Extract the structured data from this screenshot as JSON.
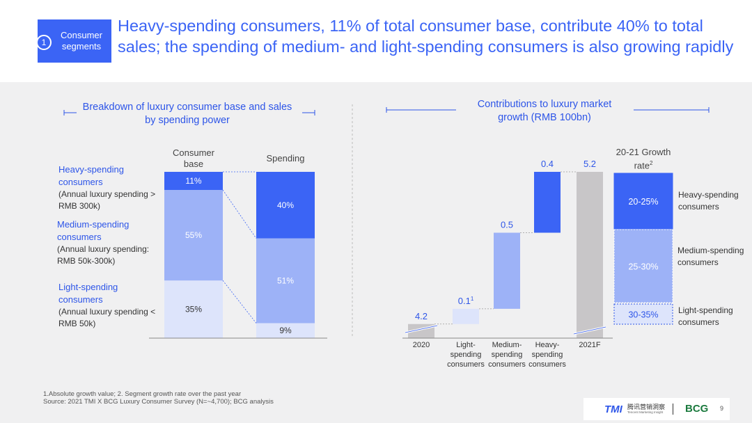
{
  "header": {
    "tag_number": "1",
    "tag_label": "Consumer\nsegments",
    "headline": "Heavy-spending consumers, 11% of total consumer base, contribute 40% to total sales; the spending of medium- and light-spending consumers is also growing rapidly"
  },
  "colors": {
    "heavy": "#3b64f5",
    "medium": "#9db2f7",
    "light": "#dde4fb",
    "gray": "#c8c6c8",
    "accent": "#2d55e8"
  },
  "left_panel": {
    "subtitle": "Breakdown of luxury consumer base and sales by spending power",
    "col_consumer_base": "Consumer base",
    "col_spending": "Spending",
    "segments": [
      {
        "name": "Heavy-spending consumers",
        "desc": "(Annual luxury spending > RMB 300k)"
      },
      {
        "name": "Medium-spending consumers",
        "desc": "(Annual luxury spending: RMB 50k-300k)"
      },
      {
        "name": "Light-spending consumers",
        "desc": "(Annual luxury spending < RMB 50k)"
      }
    ]
  },
  "right_panel": {
    "subtitle": "Contributions to luxury market growth (RMB 100bn)",
    "growth_header": "20-21 Growth rate",
    "growth_header_sup": "2",
    "legend": [
      "Heavy-spending consumers",
      "Medium-spending consumers",
      "Light-spending consumers"
    ]
  },
  "chart_data": [
    {
      "type": "bar",
      "title": "Breakdown of luxury consumer base and sales by spending power",
      "categories": [
        "Consumer base",
        "Spending"
      ],
      "series": [
        {
          "name": "Light-spending",
          "values": [
            35,
            9
          ],
          "labels": [
            "35%",
            "9%"
          ]
        },
        {
          "name": "Medium-spending",
          "values": [
            55,
            51
          ],
          "labels": [
            "55%",
            "51%"
          ]
        },
        {
          "name": "Heavy-spending",
          "values": [
            11,
            40
          ],
          "labels": [
            "11%",
            "40%"
          ]
        }
      ],
      "ylim": [
        0,
        100
      ]
    },
    {
      "type": "bar",
      "subtype": "waterfall",
      "title": "Contributions to luxury market growth (RMB 100bn)",
      "categories": [
        "2020",
        "Light-spending consumers",
        "Medium-spending consumers",
        "Heavy-spending consumers",
        "2021F"
      ],
      "values": [
        4.2,
        0.1,
        0.5,
        0.4,
        5.2
      ],
      "labels": [
        "4.2",
        "0.1",
        "0.5",
        "0.4",
        "5.2"
      ],
      "label_superscripts": [
        "",
        "1",
        "",
        "",
        ""
      ],
      "axis_break": true
    },
    {
      "type": "table",
      "title": "20-21 Growth rate",
      "rows": [
        {
          "segment": "Heavy-spending consumers",
          "value": "20-25%"
        },
        {
          "segment": "Medium-spending consumers",
          "value": "25-30%"
        },
        {
          "segment": "Light-spending consumers",
          "value": "30-35%"
        }
      ]
    }
  ],
  "footer": {
    "note": "1.Absolute growth value; 2. Segment growth rate over the past year",
    "source": "Source: 2021 TMI X BCG Luxury Consumer Survey (N=~4,700);  BCG analysis",
    "logo_tmi": "TMI",
    "logo_tmi_cn": "腾讯营销洞察",
    "logo_tmi_sub": "Tencent Marketing Insight",
    "logo_bcg": "BCG",
    "page_number": "9"
  }
}
